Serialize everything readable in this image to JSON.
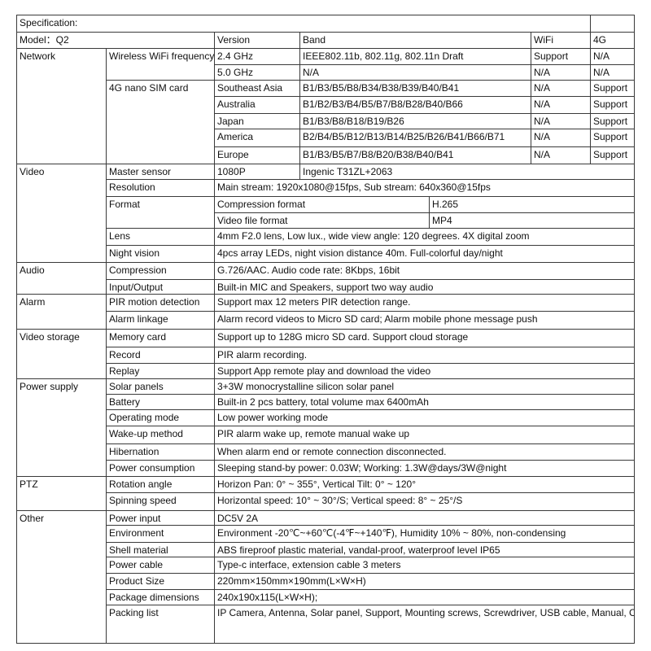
{
  "header": {
    "title": "Specification:",
    "model": "Model：Q2",
    "version": "Version",
    "band": "Band",
    "wifi": "WiFi",
    "g4": "4G"
  },
  "network": {
    "label": "Network",
    "wifi": {
      "label": "Wireless WiFi frequency",
      "rows": [
        {
          "version": "2.4 GHz",
          "band": "IEEE802.11b, 802.11g, 802.11n Draft",
          "wifi": "Support",
          "g4": "N/A"
        },
        {
          "version": "5.0 GHz",
          "band": "N/A",
          "wifi": "N/A",
          "g4": "N/A"
        }
      ]
    },
    "sim": {
      "label": "4G nano SIM card",
      "rows": [
        {
          "version": "Southeast Asia",
          "band": "B1/B3/B5/B8/B34/B38/B39/B40/B41",
          "wifi": "N/A",
          "g4": "Support"
        },
        {
          "version": "Australia",
          "band": "B1/B2/B3/B4/B5/B7/B8/B28/B40/B66",
          "wifi": "N/A",
          "g4": "Support"
        },
        {
          "version": "Japan",
          "band": "B1/B3/B8/B18/B19/B26",
          "wifi": "N/A",
          "g4": "Support"
        },
        {
          "version": "America",
          "band": "B2/B4/B5/B12/B13/B14/B25/B26/B41/B66/B71",
          "wifi": "N/A",
          "g4": "Support"
        },
        {
          "version": "Europe",
          "band": "B1/B3/B5/B7/B8/B20/B38/B40/B41",
          "wifi": "N/A",
          "g4": "Support"
        }
      ]
    }
  },
  "video": {
    "label": "Video",
    "master_sensor": {
      "name": "Master sensor",
      "resolution": "1080P",
      "chip": "Ingenic T31ZL+2063"
    },
    "resolution": {
      "name": "Resolution",
      "value": "Main stream: 1920x1080@15fps, Sub stream: 640x360@15fps"
    },
    "format": {
      "name": "Format",
      "rows": [
        {
          "name": "Compression format",
          "value": "H.265"
        },
        {
          "name": "Video file format",
          "value": "MP4"
        }
      ]
    },
    "lens": {
      "name": "Lens",
      "value": "4mm F2.0 lens, Low lux., wide view angle: 120 degrees. 4X digital zoom"
    },
    "night": {
      "name": "Night vision",
      "value": "4pcs array LEDs, night vision distance 40m. Full-colorful day/night"
    }
  },
  "sections": [
    {
      "label": "Audio",
      "items": [
        {
          "name": "Compression",
          "value": "G.726/AAC. Audio code rate: 8Kbps, 16bit"
        },
        {
          "name": "Input/Output",
          "value": "Built-in MIC and Speakers, support two way audio"
        }
      ]
    },
    {
      "label": "Alarm",
      "items": [
        {
          "name": "PIR motion detection",
          "value": "Support max 12 meters PIR detection range."
        },
        {
          "name": "Alarm linkage",
          "value": "Alarm record videos to Micro SD card; Alarm mobile phone message push"
        }
      ]
    },
    {
      "label": "Video storage",
      "items": [
        {
          "name": "Memory card",
          "value": "Support up to 128G micro SD card. Support cloud storage"
        },
        {
          "name": "Record",
          "value": "PIR alarm recording."
        },
        {
          "name": "Replay",
          "value": "Support App remote play and download the video"
        }
      ]
    },
    {
      "label": "Power supply",
      "items": [
        {
          "name": "Solar panels",
          "value": "3+3W monocrystalline silicon solar panel"
        },
        {
          "name": "Battery",
          "value": "Built-in 2 pcs battery, total volume max 6400mAh"
        },
        {
          "name": "Operating mode",
          "value": "Low power working mode"
        },
        {
          "name": "Wake-up method",
          "value": "PIR alarm wake up, remote manual wake up"
        },
        {
          "name": "Hibernation",
          "value": "When alarm end or remote connection disconnected."
        },
        {
          "name": "Power consumption",
          "value": "Sleeping stand-by power: 0.03W; Working: 1.3W@days/3W@night"
        }
      ]
    },
    {
      "label": "PTZ",
      "items": [
        {
          "name": "Rotation angle",
          "value": "Horizon Pan: 0° ~ 355°, Vertical Tilt: 0° ~ 120°"
        },
        {
          "name": "Spinning speed",
          "value": "Horizontal speed: 10° ~  30°/S; Vertical speed: 8° ~  25°/S"
        }
      ]
    },
    {
      "label": "Other",
      "items": [
        {
          "name": "Power input",
          "value": "DC5V 2A"
        },
        {
          "name": "Environment",
          "value": "Environment -20℃~+60℃(-4℉~+140℉), Humidity 10% ~ 80%, non-condensing"
        },
        {
          "name": "Shell material",
          "value": "ABS fireproof plastic material, vandal-proof, waterproof level IP65"
        },
        {
          "name": "Power cable",
          "value": "Type-c interface, extension cable 3 meters"
        },
        {
          "name": "Product Size",
          "value": "220mm×150mm×190mm(L×W×H)"
        },
        {
          "name": "Package dimensions",
          "value": "240x190x115(L×W×H);"
        },
        {
          "name": "Packing list",
          "value": "IP Camera, Antenna, Solar panel, Support, Mounting screws, Screwdriver, USB cable, Manual, Cable tie"
        }
      ]
    }
  ]
}
